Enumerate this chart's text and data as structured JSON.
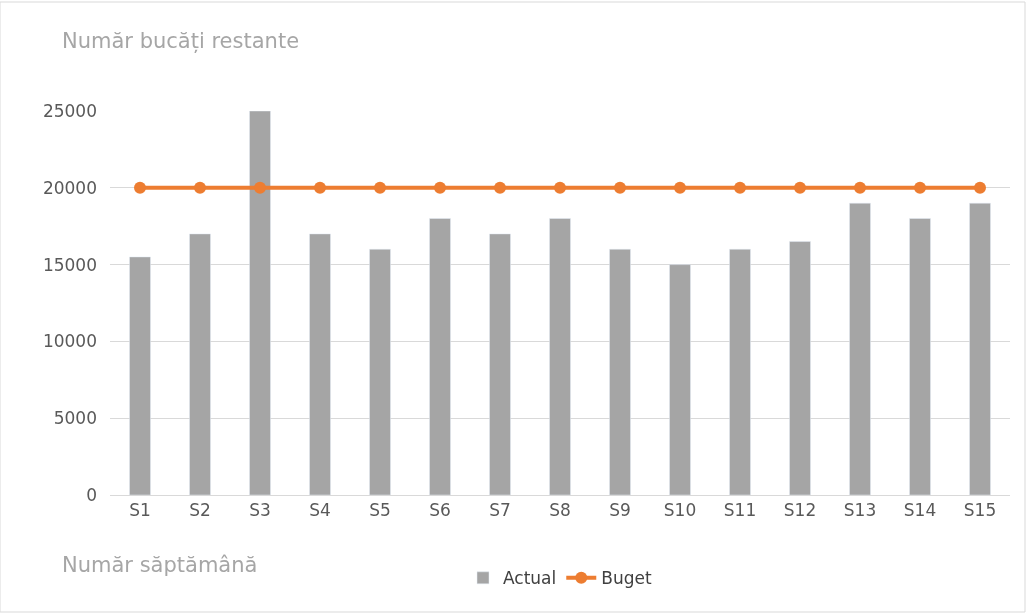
{
  "chart_data": {
    "type": "bar",
    "xlabel": "Număr săptămână",
    "ylabel": "Număr bucăți restante",
    "categories": [
      "S1",
      "S2",
      "S3",
      "S4",
      "S5",
      "S6",
      "S7",
      "S8",
      "S9",
      "S10",
      "S11",
      "S12",
      "S13",
      "S14",
      "S15"
    ],
    "series": [
      {
        "name": "Actual",
        "color": "#a5a5a5",
        "values": [
          15500,
          17000,
          25000,
          17000,
          16000,
          18000,
          17000,
          18000,
          16000,
          15000,
          16000,
          16500,
          19000,
          18000,
          19000
        ]
      },
      {
        "name": "Buget",
        "type": "line",
        "color": "#ed7d31",
        "values": [
          20000,
          20000,
          20000,
          20000,
          20000,
          20000,
          20000,
          20000,
          20000,
          20000,
          20000,
          20000,
          20000,
          20000,
          20000
        ]
      }
    ],
    "ylim": [
      0,
      25000
    ],
    "yticks": [
      0,
      5000,
      10000,
      15000,
      20000,
      25000
    ],
    "grid": "y",
    "legend": "bottom",
    "marker": "circle"
  }
}
